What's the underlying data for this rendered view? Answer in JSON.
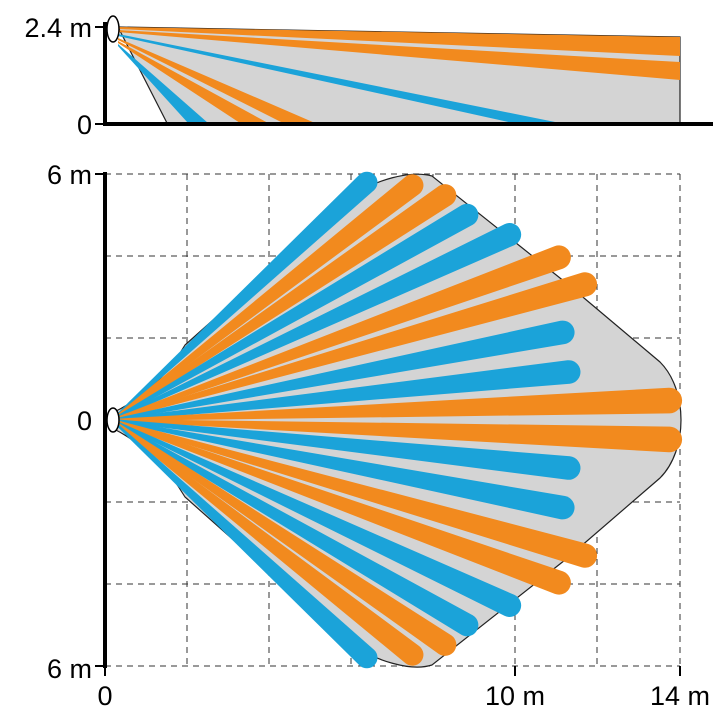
{
  "side_view": {
    "height_label_top": "2.4 m",
    "height_label_bottom": "0"
  },
  "top_view": {
    "y_label_top": "6 m",
    "y_label_mid": "0",
    "y_label_bottom": "6 m",
    "x_label_0": "0",
    "x_label_10": "10 m",
    "x_label_14": "14 m"
  },
  "colors": {
    "coverage_fill": "#d4d4d4",
    "beam_orange": "#f28a1e",
    "beam_blue": "#1ba3d9",
    "grid": "#333333",
    "axis": "#000000"
  },
  "chart_data": {
    "type": "other",
    "description_free": true,
    "side_beams": [
      {
        "color": "orange",
        "reach_m": 14
      },
      {
        "color": "orange",
        "reach_m": 14
      },
      {
        "color": "blue",
        "reach_m": 11
      },
      {
        "color": "orange",
        "reach_m": 5
      },
      {
        "color": "orange",
        "reach_m": 4
      },
      {
        "color": "blue",
        "reach_m": 2.5
      }
    ],
    "top_beams": [
      {
        "angle_deg": 43,
        "length_m": 8.5,
        "color": "blue"
      },
      {
        "angle_deg": 38,
        "length_m": 9.3,
        "color": "orange"
      },
      {
        "angle_deg": 34,
        "length_m": 9.8,
        "color": "orange"
      },
      {
        "angle_deg": 30,
        "length_m": 10.0,
        "color": "blue"
      },
      {
        "angle_deg": 25,
        "length_m": 10.7,
        "color": "blue"
      },
      {
        "angle_deg": 20,
        "length_m": 11.6,
        "color": "orange"
      },
      {
        "angle_deg": 16,
        "length_m": 12.0,
        "color": "orange"
      },
      {
        "angle_deg": 11,
        "length_m": 11.2,
        "color": "blue"
      },
      {
        "angle_deg": 6,
        "length_m": 11.2,
        "color": "blue"
      },
      {
        "angle_deg": 2,
        "length_m": 13.6,
        "color": "orange"
      },
      {
        "angle_deg": -2,
        "length_m": 13.6,
        "color": "orange"
      },
      {
        "angle_deg": -6,
        "length_m": 11.2,
        "color": "blue"
      },
      {
        "angle_deg": -11,
        "length_m": 11.2,
        "color": "blue"
      },
      {
        "angle_deg": -16,
        "length_m": 12.0,
        "color": "orange"
      },
      {
        "angle_deg": -20,
        "length_m": 11.6,
        "color": "orange"
      },
      {
        "angle_deg": -25,
        "length_m": 10.7,
        "color": "blue"
      },
      {
        "angle_deg": -30,
        "length_m": 10.0,
        "color": "blue"
      },
      {
        "angle_deg": -34,
        "length_m": 9.8,
        "color": "orange"
      },
      {
        "angle_deg": -38,
        "length_m": 9.3,
        "color": "orange"
      },
      {
        "angle_deg": -43,
        "length_m": 8.5,
        "color": "blue"
      }
    ]
  }
}
